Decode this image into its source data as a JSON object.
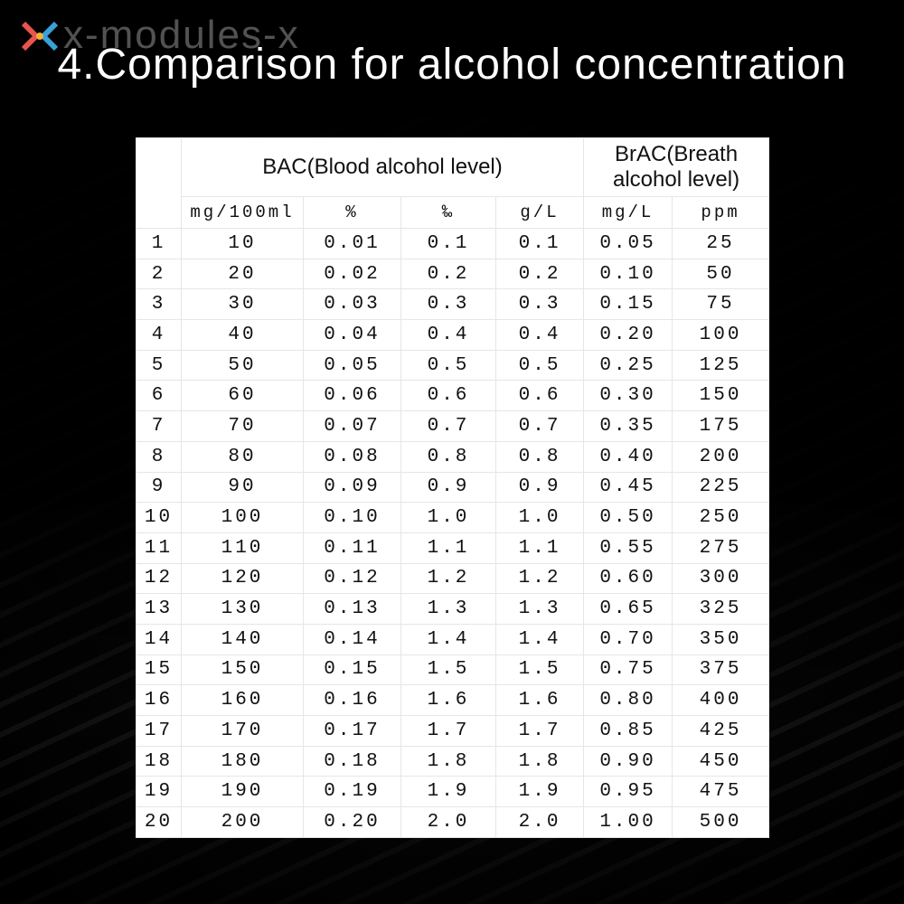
{
  "watermark": "x-modules-x",
  "title": "4.Comparison for alcohol concentration",
  "table": {
    "groups": [
      "BAC(Blood alcohol level)",
      "BrAC(Breath alcohol level)"
    ],
    "units": [
      "mg/100ml",
      "%",
      "‰",
      "g/L",
      "mg/L",
      "ppm"
    ],
    "rows": [
      [
        "1",
        "10",
        "0.01",
        "0.1",
        "0.1",
        "0.05",
        "25"
      ],
      [
        "2",
        "20",
        "0.02",
        "0.2",
        "0.2",
        "0.10",
        "50"
      ],
      [
        "3",
        "30",
        "0.03",
        "0.3",
        "0.3",
        "0.15",
        "75"
      ],
      [
        "4",
        "40",
        "0.04",
        "0.4",
        "0.4",
        "0.20",
        "100"
      ],
      [
        "5",
        "50",
        "0.05",
        "0.5",
        "0.5",
        "0.25",
        "125"
      ],
      [
        "6",
        "60",
        "0.06",
        "0.6",
        "0.6",
        "0.30",
        "150"
      ],
      [
        "7",
        "70",
        "0.07",
        "0.7",
        "0.7",
        "0.35",
        "175"
      ],
      [
        "8",
        "80",
        "0.08",
        "0.8",
        "0.8",
        "0.40",
        "200"
      ],
      [
        "9",
        "90",
        "0.09",
        "0.9",
        "0.9",
        "0.45",
        "225"
      ],
      [
        "10",
        "100",
        "0.10",
        "1.0",
        "1.0",
        "0.50",
        "250"
      ],
      [
        "11",
        "110",
        "0.11",
        "1.1",
        "1.1",
        "0.55",
        "275"
      ],
      [
        "12",
        "120",
        "0.12",
        "1.2",
        "1.2",
        "0.60",
        "300"
      ],
      [
        "13",
        "130",
        "0.13",
        "1.3",
        "1.3",
        "0.65",
        "325"
      ],
      [
        "14",
        "140",
        "0.14",
        "1.4",
        "1.4",
        "0.70",
        "350"
      ],
      [
        "15",
        "150",
        "0.15",
        "1.5",
        "1.5",
        "0.75",
        "375"
      ],
      [
        "16",
        "160",
        "0.16",
        "1.6",
        "1.6",
        "0.80",
        "400"
      ],
      [
        "17",
        "170",
        "0.17",
        "1.7",
        "1.7",
        "0.85",
        "425"
      ],
      [
        "18",
        "180",
        "0.18",
        "1.8",
        "1.8",
        "0.90",
        "450"
      ],
      [
        "19",
        "190",
        "0.19",
        "1.9",
        "1.9",
        "0.95",
        "475"
      ],
      [
        "20",
        "200",
        "0.20",
        "2.0",
        "2.0",
        "1.00",
        "500"
      ]
    ]
  }
}
